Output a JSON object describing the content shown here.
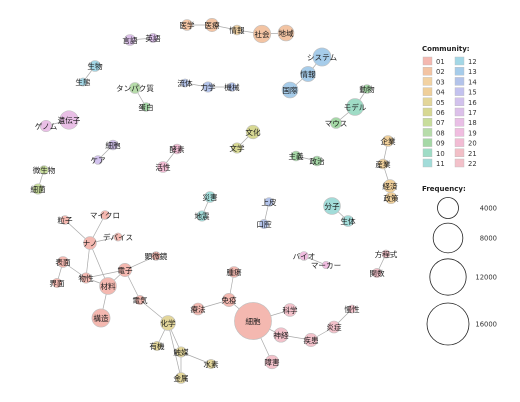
{
  "community_colors": {
    "01": "#f4b8b0",
    "02": "#f3c4a3",
    "03": "#f2d2a2",
    "04": "#efcf9a",
    "05": "#e3d69a",
    "06": "#d7d893",
    "07": "#c8dd9c",
    "08": "#b7dcaa",
    "09": "#a5d8a6",
    "10": "#9fdcc6",
    "11": "#a2dcd9",
    "12": "#a3d7e6",
    "13": "#a6ccea",
    "14": "#b3c3ea",
    "15": "#c3c2ef",
    "16": "#d2c2ed",
    "17": "#dcc0ea",
    "18": "#e9bfe6",
    "19": "#f0bde0",
    "20": "#f2bcd4",
    "21": "#f2bfc7",
    "22": "#f3c1ca"
  },
  "legend": {
    "community_title": "Community:",
    "communities": [
      "01",
      "02",
      "03",
      "04",
      "05",
      "06",
      "07",
      "08",
      "09",
      "10",
      "11",
      "12",
      "13",
      "14",
      "15",
      "16",
      "17",
      "18",
      "19",
      "20",
      "21",
      "22"
    ],
    "frequency_title": "Frequency:",
    "frequency_values": [
      4000,
      8000,
      12000,
      16000
    ]
  },
  "nodes": [
    {
      "id": "医学",
      "label": "医学",
      "community": "02",
      "freq": 1100
    },
    {
      "id": "医療",
      "label": "医療",
      "community": "02",
      "freq": 1600
    },
    {
      "id": "情報",
      "label": "情報",
      "community": "03",
      "freq": 900
    },
    {
      "id": "社会",
      "label": "社会",
      "community": "02",
      "freq": 2800
    },
    {
      "id": "地域",
      "label": "地域",
      "community": "02",
      "freq": 2300
    },
    {
      "id": "言語",
      "label": "言語",
      "community": "17",
      "freq": 1100
    },
    {
      "id": "英語",
      "label": "英語",
      "community": "17",
      "freq": 800
    },
    {
      "id": "システム",
      "label": "システム",
      "community": "13",
      "freq": 3000
    },
    {
      "id": "情報2",
      "label": "情報",
      "community": "13",
      "freq": 2100
    },
    {
      "id": "国際",
      "label": "国際",
      "community": "13",
      "freq": 2300
    },
    {
      "id": "生物",
      "label": "生物",
      "community": "12",
      "freq": 1100
    },
    {
      "id": "生態",
      "label": "生態",
      "community": "12",
      "freq": 600
    },
    {
      "id": "タンパク質",
      "label": "タンパク質",
      "community": "08",
      "freq": 1100
    },
    {
      "id": "蛋白",
      "label": "蛋白",
      "community": "09",
      "freq": 700
    },
    {
      "id": "流体",
      "label": "流体",
      "community": "14",
      "freq": 600
    },
    {
      "id": "力学",
      "label": "力学",
      "community": "14",
      "freq": 1000
    },
    {
      "id": "機械",
      "label": "機械",
      "community": "14",
      "freq": 700
    },
    {
      "id": "動物",
      "label": "動物",
      "community": "09",
      "freq": 700
    },
    {
      "id": "モデル",
      "label": "モデル",
      "community": "10",
      "freq": 2600
    },
    {
      "id": "マウス",
      "label": "マウス",
      "community": "09",
      "freq": 1100
    },
    {
      "id": "遺伝子",
      "label": "遺伝子",
      "community": "18",
      "freq": 3100
    },
    {
      "id": "ゲノム",
      "label": "ゲノム",
      "community": "18",
      "freq": 1200
    },
    {
      "id": "細胞性",
      "label": "細胞",
      "community": "16",
      "freq": 900
    },
    {
      "id": "ケア",
      "label": "ケア",
      "community": "16",
      "freq": 700
    },
    {
      "id": "酵素",
      "label": "酵素",
      "community": "20",
      "freq": 900
    },
    {
      "id": "活性",
      "label": "活性",
      "community": "20",
      "freq": 1100
    },
    {
      "id": "文化",
      "label": "文化",
      "community": "06",
      "freq": 1700
    },
    {
      "id": "文学",
      "label": "文学",
      "community": "06",
      "freq": 1000
    },
    {
      "id": "企業",
      "label": "企業",
      "community": "04",
      "freq": 1100
    },
    {
      "id": "産業",
      "label": "産業",
      "community": "04",
      "freq": 900
    },
    {
      "id": "経済",
      "label": "経済",
      "community": "04",
      "freq": 1500
    },
    {
      "id": "政策",
      "label": "政策",
      "community": "04",
      "freq": 1200
    },
    {
      "id": "微生物",
      "label": "微生物",
      "community": "07",
      "freq": 700
    },
    {
      "id": "細菌",
      "label": "細菌",
      "community": "07",
      "freq": 1000
    },
    {
      "id": "主義",
      "label": "主義",
      "community": "09",
      "freq": 900
    },
    {
      "id": "政治",
      "label": "政治",
      "community": "09",
      "freq": 900
    },
    {
      "id": "災害",
      "label": "災害",
      "community": "11",
      "freq": 1100
    },
    {
      "id": "地震",
      "label": "地震",
      "community": "11",
      "freq": 1000
    },
    {
      "id": "上皮",
      "label": "上皮",
      "community": "14",
      "freq": 700
    },
    {
      "id": "口腔",
      "label": "口腔",
      "community": "14",
      "freq": 800
    },
    {
      "id": "分子",
      "label": "分子",
      "community": "11",
      "freq": 2600
    },
    {
      "id": "生体",
      "label": "生体",
      "community": "11",
      "freq": 1100
    },
    {
      "id": "粒子",
      "label": "粒子",
      "community": "01",
      "freq": 700
    },
    {
      "id": "マイクロ",
      "label": "マイクロ",
      "community": "01",
      "freq": 700
    },
    {
      "id": "ナノ",
      "label": "ナノ",
      "community": "01",
      "freq": 1500
    },
    {
      "id": "デバイス",
      "label": "デバイス",
      "community": "01",
      "freq": 600
    },
    {
      "id": "表面",
      "label": "表面",
      "community": "01",
      "freq": 1100
    },
    {
      "id": "界面",
      "label": "界面",
      "community": "01",
      "freq": 800
    },
    {
      "id": "物性",
      "label": "物性",
      "community": "01",
      "freq": 1000
    },
    {
      "id": "材料",
      "label": "材料",
      "community": "01",
      "freq": 2600
    },
    {
      "id": "電子",
      "label": "電子",
      "community": "01",
      "freq": 1600
    },
    {
      "id": "電気",
      "label": "電気",
      "community": "01",
      "freq": 800
    },
    {
      "id": "構造",
      "label": "構造",
      "community": "01",
      "freq": 3000
    },
    {
      "id": "顕微鏡",
      "label": "顕微鏡",
      "community": "01",
      "freq": 700
    },
    {
      "id": "化学",
      "label": "化学",
      "community": "05",
      "freq": 2000
    },
    {
      "id": "有機",
      "label": "有機",
      "community": "05",
      "freq": 800
    },
    {
      "id": "触媒",
      "label": "触媒",
      "community": "05",
      "freq": 1000
    },
    {
      "id": "水素",
      "label": "水素",
      "community": "05",
      "freq": 800
    },
    {
      "id": "金属",
      "label": "金属",
      "community": "05",
      "freq": 1100
    },
    {
      "id": "腫瘍",
      "label": "腫瘍",
      "community": "01",
      "freq": 1100
    },
    {
      "id": "免疫",
      "label": "免疫",
      "community": "01",
      "freq": 1600
    },
    {
      "id": "療法",
      "label": "療法",
      "community": "01",
      "freq": 1300
    },
    {
      "id": "細胞",
      "label": "細胞",
      "community": "01",
      "freq": 12500
    },
    {
      "id": "科学",
      "label": "科学",
      "community": "22",
      "freq": 1500
    },
    {
      "id": "神経",
      "label": "神経",
      "community": "22",
      "freq": 1900
    },
    {
      "id": "障害",
      "label": "障害",
      "community": "22",
      "freq": 1700
    },
    {
      "id": "疾患",
      "label": "疾患",
      "community": "22",
      "freq": 1600
    },
    {
      "id": "炎症",
      "label": "炎症",
      "community": "22",
      "freq": 1300
    },
    {
      "id": "慢性",
      "label": "慢性",
      "community": "22",
      "freq": 600
    },
    {
      "id": "バイオ",
      "label": "バイオ",
      "community": "19",
      "freq": 700
    },
    {
      "id": "マーカー",
      "label": "マーカー",
      "community": "19",
      "freq": 500
    },
    {
      "id": "方程式",
      "label": "方程式",
      "community": "21",
      "freq": 600
    },
    {
      "id": "関数",
      "label": "関数",
      "community": "21",
      "freq": 800
    }
  ],
  "edges": [
    [
      "医学",
      "医療"
    ],
    [
      "医療",
      "情報"
    ],
    [
      "情報",
      "社会"
    ],
    [
      "社会",
      "地域"
    ],
    [
      "言語",
      "英語"
    ],
    [
      "システム",
      "情報2"
    ],
    [
      "情報2",
      "国際"
    ],
    [
      "生物",
      "生態"
    ],
    [
      "タンパク質",
      "蛋白"
    ],
    [
      "流体",
      "力学"
    ],
    [
      "力学",
      "機械"
    ],
    [
      "動物",
      "モデル"
    ],
    [
      "モデル",
      "マウス"
    ],
    [
      "遺伝子",
      "ゲノム"
    ],
    [
      "細胞性",
      "ケア"
    ],
    [
      "酵素",
      "活性"
    ],
    [
      "文化",
      "文学"
    ],
    [
      "企業",
      "産業"
    ],
    [
      "産業",
      "経済"
    ],
    [
      "経済",
      "政策"
    ],
    [
      "微生物",
      "細菌"
    ],
    [
      "主義",
      "政治"
    ],
    [
      "災害",
      "地震"
    ],
    [
      "上皮",
      "口腔"
    ],
    [
      "分子",
      "生体"
    ],
    [
      "粒子",
      "ナノ"
    ],
    [
      "マイクロ",
      "ナノ"
    ],
    [
      "デバイス",
      "ナノ"
    ],
    [
      "ナノ",
      "物性"
    ],
    [
      "ナノ",
      "材料"
    ],
    [
      "表面",
      "界面"
    ],
    [
      "表面",
      "物性"
    ],
    [
      "物性",
      "材料"
    ],
    [
      "材料",
      "電子"
    ],
    [
      "材料",
      "構造"
    ],
    [
      "電子",
      "顕微鏡"
    ],
    [
      "電子",
      "電気"
    ],
    [
      "電子",
      "物性"
    ],
    [
      "電気",
      "化学"
    ],
    [
      "化学",
      "有機"
    ],
    [
      "化学",
      "触媒"
    ],
    [
      "触媒",
      "水素"
    ],
    [
      "触媒",
      "金属"
    ],
    [
      "化学",
      "金属"
    ],
    [
      "腫瘍",
      "免疫"
    ],
    [
      "免疫",
      "療法"
    ],
    [
      "免疫",
      "細胞"
    ],
    [
      "細胞",
      "科学"
    ],
    [
      "細胞",
      "神経"
    ],
    [
      "細胞",
      "障害"
    ],
    [
      "神経",
      "疾患"
    ],
    [
      "疾患",
      "炎症"
    ],
    [
      "炎症",
      "慢性"
    ],
    [
      "バイオ",
      "マーカー"
    ],
    [
      "方程式",
      "関数"
    ]
  ]
}
